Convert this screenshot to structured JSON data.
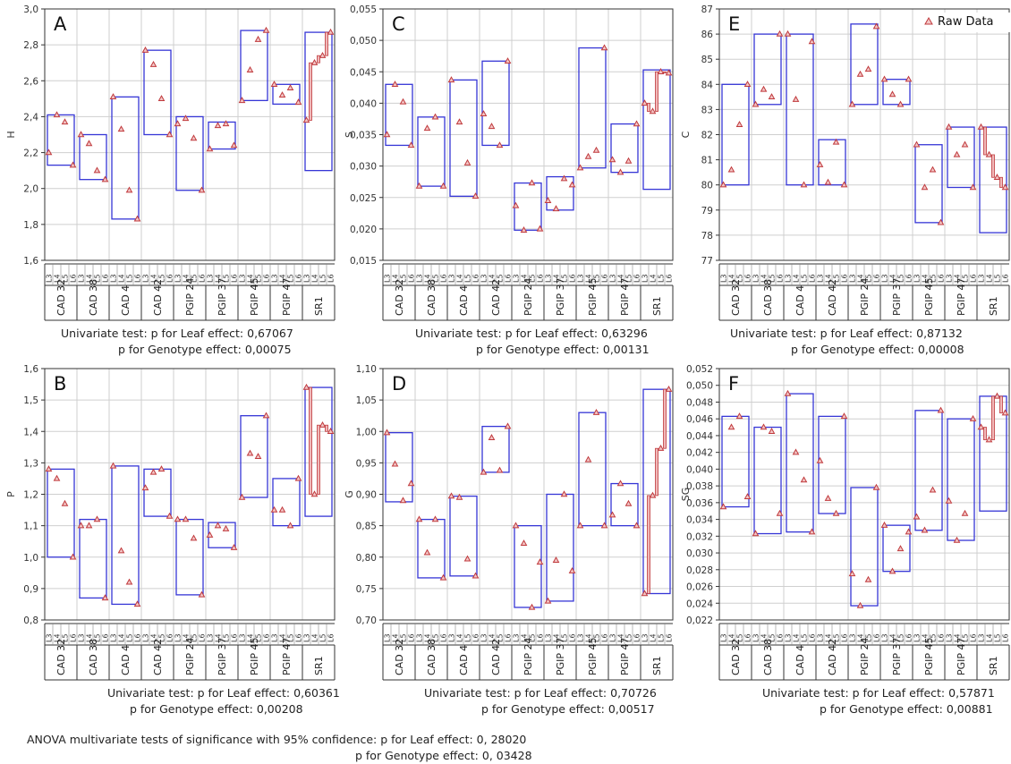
{
  "colors": {
    "box": "#3636d6",
    "raw": "#c0393c",
    "frame": "#333333",
    "grid": "#cfcfcf"
  },
  "legend_label": "Raw Data",
  "anova": {
    "line1": "ANOVA multivariate tests of significance with 95% confidence: p for Leaf effect: 0, 28020",
    "line2": "p for Genotype effect: 0, 03428"
  },
  "leaf_labels": [
    "L3",
    "L4",
    "L5",
    "L6"
  ],
  "chart_data": [
    {
      "type": "box",
      "letter": "A",
      "ylabel": "H",
      "ylim": [
        1.6,
        3.0
      ],
      "decimals": 1,
      "ticks": [
        "1,6",
        "1,8",
        "2,0",
        "2,2",
        "2,4",
        "2,6",
        "2,8",
        "3,0"
      ],
      "categories": [
        "CAD 32",
        "CAD 38",
        "CAD 4",
        "CAD 42",
        "PGIP 24",
        "PGIP 37",
        "PGIP 45",
        "PGIP 47",
        "SR1"
      ],
      "boxes": [
        [
          2.13,
          2.41
        ],
        [
          2.05,
          2.3
        ],
        [
          1.83,
          2.51
        ],
        [
          2.3,
          2.77
        ],
        [
          1.99,
          2.4
        ],
        [
          2.22,
          2.37
        ],
        [
          2.49,
          2.88
        ],
        [
          2.47,
          2.58
        ],
        [
          2.1,
          2.87
        ]
      ],
      "points": [
        [
          2.2,
          2.41,
          2.37,
          2.13
        ],
        [
          2.3,
          2.25,
          2.1,
          2.05
        ],
        [
          2.51,
          2.33,
          1.99,
          1.83
        ],
        [
          2.77,
          2.69,
          2.5,
          2.3
        ],
        [
          2.36,
          2.39,
          2.28,
          1.99
        ],
        [
          2.22,
          2.35,
          2.36,
          2.24
        ],
        [
          2.49,
          2.66,
          2.83,
          2.88
        ],
        [
          2.58,
          2.52,
          2.56,
          2.48
        ],
        [
          2.38,
          2.7,
          2.74,
          2.87
        ]
      ],
      "stat": {
        "line1": "Univariate test: p for Leaf effect: 0,67067",
        "line2": "p for Genotype effect: 0,00075"
      }
    },
    {
      "type": "box",
      "letter": "B",
      "ylabel": "P",
      "ylim": [
        0.8,
        1.6
      ],
      "decimals": 1,
      "ticks": [
        "0,8",
        "0,9",
        "1,0",
        "1,1",
        "1,2",
        "1,3",
        "1,4",
        "1,5",
        "1,6"
      ],
      "categories": [
        "CAD 32",
        "CAD 38",
        "CAD 4",
        "CAD 42",
        "PGIP 24",
        "PGIP 37",
        "PGIP 45",
        "PGIP 47",
        "SR1"
      ],
      "boxes": [
        [
          1.0,
          1.28
        ],
        [
          0.87,
          1.12
        ],
        [
          0.85,
          1.29
        ],
        [
          1.13,
          1.28
        ],
        [
          0.88,
          1.12
        ],
        [
          1.03,
          1.11
        ],
        [
          1.19,
          1.45
        ],
        [
          1.1,
          1.25
        ],
        [
          1.13,
          1.54
        ]
      ],
      "points": [
        [
          1.28,
          1.25,
          1.17,
          1.0
        ],
        [
          1.1,
          1.1,
          1.12,
          0.87
        ],
        [
          1.29,
          1.02,
          0.92,
          0.85
        ],
        [
          1.22,
          1.27,
          1.28,
          1.13
        ],
        [
          1.12,
          1.12,
          1.06,
          0.88
        ],
        [
          1.07,
          1.1,
          1.09,
          1.03
        ],
        [
          1.19,
          1.33,
          1.32,
          1.45
        ],
        [
          1.15,
          1.15,
          1.1,
          1.25
        ],
        [
          1.54,
          1.2,
          1.42,
          1.4
        ]
      ],
      "stat": {
        "line1": "Univariate test: p for Leaf effect: 0,60361",
        "line2": "p for Genotype effect: 0,00208"
      }
    },
    {
      "type": "box",
      "letter": "C",
      "ylabel": "S",
      "ylim": [
        0.015,
        0.055
      ],
      "decimals": 3,
      "ticks": [
        "0,015",
        "0,020",
        "0,025",
        "0,030",
        "0,035",
        "0,040",
        "0,045",
        "0,050",
        "0,055"
      ],
      "categories": [
        "CAD 32",
        "CAD 38",
        "CAD 4",
        "CAD 42",
        "PGIP 24",
        "PGIP 37",
        "PGIP 45",
        "PGIP 47",
        "SR1"
      ],
      "boxes": [
        [
          0.0333,
          0.043
        ],
        [
          0.0268,
          0.0378
        ],
        [
          0.0252,
          0.0437
        ],
        [
          0.0333,
          0.0467
        ],
        [
          0.0198,
          0.0273
        ],
        [
          0.023,
          0.0283
        ],
        [
          0.0297,
          0.0488
        ],
        [
          0.029,
          0.0367
        ],
        [
          0.0263,
          0.0453
        ]
      ],
      "points": [
        [
          0.035,
          0.043,
          0.0402,
          0.0333
        ],
        [
          0.0268,
          0.036,
          0.0378,
          0.0268
        ],
        [
          0.0437,
          0.037,
          0.0305,
          0.0252
        ],
        [
          0.0383,
          0.0363,
          0.0333,
          0.0467
        ],
        [
          0.0237,
          0.0198,
          0.0273,
          0.02
        ],
        [
          0.0245,
          0.0232,
          0.028,
          0.027
        ],
        [
          0.0297,
          0.0315,
          0.0325,
          0.0488
        ],
        [
          0.031,
          0.029,
          0.0308,
          0.0367
        ],
        [
          0.04,
          0.0387,
          0.045,
          0.0448
        ]
      ],
      "stat": {
        "line1": "Univariate test: p for Leaf effect: 0,63296",
        "line2": "p for Genotype effect: 0,00131"
      }
    },
    {
      "type": "box",
      "letter": "D",
      "ylabel": "G",
      "ylim": [
        0.7,
        1.1
      ],
      "decimals": 2,
      "ticks": [
        "0,70",
        "0,75",
        "0,80",
        "0,85",
        "0,90",
        "0,95",
        "1,00",
        "1,05",
        "1,10"
      ],
      "categories": [
        "CAD 32",
        "CAD 38",
        "CAD 4",
        "CAD 42",
        "PGIP 24",
        "PGIP 37",
        "PGIP 45",
        "PGIP 47",
        "SR1"
      ],
      "boxes": [
        [
          0.888,
          0.998
        ],
        [
          0.767,
          0.86
        ],
        [
          0.77,
          0.897
        ],
        [
          0.935,
          1.008
        ],
        [
          0.72,
          0.85
        ],
        [
          0.73,
          0.9
        ],
        [
          0.85,
          1.03
        ],
        [
          0.85,
          0.917
        ],
        [
          0.742,
          1.067
        ]
      ],
      "points": [
        [
          0.998,
          0.948,
          0.89,
          0.917
        ],
        [
          0.86,
          0.807,
          0.86,
          0.767
        ],
        [
          0.897,
          0.895,
          0.797,
          0.77
        ],
        [
          0.935,
          0.99,
          0.938,
          1.008
        ],
        [
          0.85,
          0.822,
          0.72,
          0.792
        ],
        [
          0.73,
          0.795,
          0.9,
          0.778
        ],
        [
          0.85,
          0.955,
          1.03,
          0.85
        ],
        [
          0.867,
          0.917,
          0.885,
          0.85
        ],
        [
          0.742,
          0.898,
          0.973,
          1.067
        ]
      ],
      "stat": {
        "line1": "Univariate test: p for Leaf effect: 0,70726",
        "line2": "p for Genotype effect: 0,00517"
      }
    },
    {
      "type": "box",
      "letter": "E",
      "ylabel": "C",
      "ylim": [
        77,
        87
      ],
      "decimals": 0,
      "legend": true,
      "ticks": [
        "77",
        "78",
        "79",
        "80",
        "81",
        "82",
        "83",
        "84",
        "85",
        "86",
        "87"
      ],
      "categories": [
        "CAD 32",
        "CAD 38",
        "CAD 4",
        "CAD 42",
        "PGIP 24",
        "PGIP 37",
        "PGIP 45",
        "PGIP 47",
        "SR1"
      ],
      "boxes": [
        [
          80.0,
          84.0
        ],
        [
          83.2,
          86.0
        ],
        [
          80.0,
          86.0
        ],
        [
          80.0,
          81.8
        ],
        [
          83.2,
          86.4
        ],
        [
          83.2,
          84.2
        ],
        [
          78.5,
          81.6
        ],
        [
          79.9,
          82.3
        ],
        [
          78.1,
          82.3
        ]
      ],
      "points": [
        [
          80.0,
          80.6,
          82.4,
          84.0
        ],
        [
          83.2,
          83.8,
          83.5,
          86.0
        ],
        [
          86.0,
          83.4,
          80.0,
          85.7
        ],
        [
          80.8,
          80.1,
          81.7,
          80.0
        ],
        [
          83.2,
          84.4,
          84.6,
          86.3
        ],
        [
          84.2,
          83.6,
          83.2,
          84.2
        ],
        [
          81.6,
          79.9,
          80.6,
          78.5
        ],
        [
          82.3,
          81.2,
          81.6,
          79.9
        ],
        [
          82.3,
          81.2,
          80.3,
          79.9
        ]
      ],
      "stat": {
        "line1": "Univariate test: p for Leaf effect: 0,87132",
        "line2": "p for Genotype effect: 0,00008"
      }
    },
    {
      "type": "box",
      "letter": "F",
      "ylabel": "SG",
      "ylim": [
        0.022,
        0.052
      ],
      "decimals": 3,
      "ticks": [
        "0,022",
        "0,024",
        "0,026",
        "0,028",
        "0,030",
        "0,032",
        "0,034",
        "0,036",
        "0,038",
        "0,040",
        "0,042",
        "0,044",
        "0,046",
        "0,048",
        "0,050",
        "0,052"
      ],
      "categories": [
        "CAD 32",
        "CAD 38",
        "CAD 4",
        "CAD 42",
        "PGIP 24",
        "PGIP 37",
        "PGIP 45",
        "PGIP 47",
        "SR1"
      ],
      "boxes": [
        [
          0.0355,
          0.0463
        ],
        [
          0.0323,
          0.045
        ],
        [
          0.0325,
          0.049
        ],
        [
          0.0347,
          0.0463
        ],
        [
          0.0237,
          0.0378
        ],
        [
          0.0278,
          0.0333
        ],
        [
          0.0327,
          0.047
        ],
        [
          0.0315,
          0.046
        ],
        [
          0.035,
          0.0487
        ]
      ],
      "points": [
        [
          0.0355,
          0.045,
          0.0463,
          0.0367
        ],
        [
          0.0323,
          0.045,
          0.0445,
          0.0347
        ],
        [
          0.049,
          0.042,
          0.0387,
          0.0325
        ],
        [
          0.041,
          0.0365,
          0.0347,
          0.0463
        ],
        [
          0.0275,
          0.0237,
          0.0268,
          0.0378
        ],
        [
          0.0333,
          0.0278,
          0.0305,
          0.0325
        ],
        [
          0.0343,
          0.0327,
          0.0375,
          0.047
        ],
        [
          0.0362,
          0.0315,
          0.0347,
          0.046
        ],
        [
          0.045,
          0.0435,
          0.0487,
          0.0467
        ]
      ],
      "stat": {
        "line1": "Univariate test: p for Leaf effect: 0,57871",
        "line2": "p for Genotype effect: 0,00881"
      }
    }
  ]
}
